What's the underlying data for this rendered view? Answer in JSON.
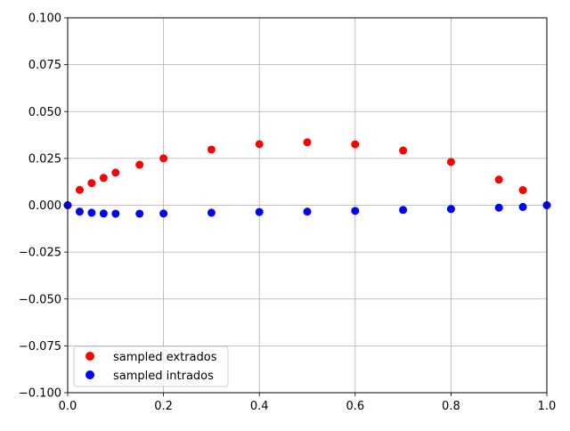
{
  "chart_data": {
    "type": "scatter",
    "title": "",
    "xlabel": "",
    "ylabel": "",
    "xlim": [
      0.0,
      1.0
    ],
    "ylim": [
      -0.1,
      0.1
    ],
    "grid": true,
    "legend_position": "lower-left",
    "x_ticks": [
      "0.0",
      "0.2",
      "0.4",
      "0.6",
      "0.8",
      "1.0"
    ],
    "x_tick_values": [
      0.0,
      0.2,
      0.4,
      0.6,
      0.8,
      1.0
    ],
    "y_ticks": [
      "0.100",
      "0.075",
      "0.050",
      "0.025",
      "0.000",
      "−0.025",
      "−0.050",
      "−0.075",
      "−0.100"
    ],
    "y_tick_values": [
      0.1,
      0.075,
      0.05,
      0.025,
      0.0,
      -0.025,
      -0.05,
      -0.075,
      -0.1
    ],
    "series": [
      {
        "name": "sampled extrados",
        "color": "#ff0000",
        "points": [
          [
            0.0,
            0.0
          ],
          [
            0.025,
            0.0082
          ],
          [
            0.05,
            0.0118
          ],
          [
            0.075,
            0.0146
          ],
          [
            0.1,
            0.0174
          ],
          [
            0.15,
            0.0216
          ],
          [
            0.2,
            0.025
          ],
          [
            0.3,
            0.0297
          ],
          [
            0.4,
            0.0326
          ],
          [
            0.5,
            0.0336
          ],
          [
            0.6,
            0.0325
          ],
          [
            0.7,
            0.0292
          ],
          [
            0.8,
            0.0231
          ],
          [
            0.9,
            0.0137
          ],
          [
            0.95,
            0.0081
          ],
          [
            1.0,
            0.0
          ]
        ]
      },
      {
        "name": "sampled intrados",
        "color": "#0000ff",
        "points": [
          [
            0.0,
            0.0
          ],
          [
            0.025,
            -0.0034
          ],
          [
            0.05,
            -0.004
          ],
          [
            0.075,
            -0.0044
          ],
          [
            0.1,
            -0.0045
          ],
          [
            0.15,
            -0.0045
          ],
          [
            0.2,
            -0.0044
          ],
          [
            0.3,
            -0.004
          ],
          [
            0.4,
            -0.0036
          ],
          [
            0.5,
            -0.0034
          ],
          [
            0.6,
            -0.003
          ],
          [
            0.7,
            -0.0025
          ],
          [
            0.8,
            -0.002
          ],
          [
            0.9,
            -0.0013
          ],
          [
            0.95,
            -0.0009
          ],
          [
            1.0,
            0.0
          ]
        ]
      }
    ]
  }
}
